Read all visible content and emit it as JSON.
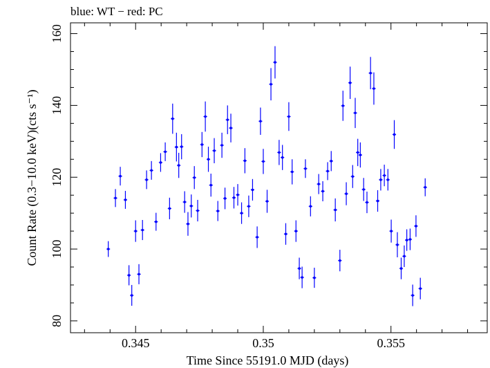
{
  "chart_data": {
    "type": "scatter",
    "title": "blue: WT − red: PC",
    "xlabel": "Time Since 55191.0 MJD (days)",
    "ylabel": "Count Rate (0.3−10.0 keV)(cts s⁻¹)",
    "xlim": [
      0.34245,
      0.35877
    ],
    "ylim": [
      76.7,
      163.0
    ],
    "xticks": [
      0.345,
      0.35,
      0.355
    ],
    "xtick_labels": [
      "0.345",
      "0.35",
      "0.355"
    ],
    "yticks": [
      80,
      100,
      120,
      140,
      160
    ],
    "ytick_labels": [
      "80",
      "100",
      "120",
      "140",
      "160"
    ],
    "grid": false,
    "series": [
      {
        "color": "#0000ff",
        "x_err": 7e-05,
        "points": [
          [
            0.34393,
            100.0,
            2.2
          ],
          [
            0.34421,
            114.2,
            2.5
          ],
          [
            0.3444,
            120.3,
            2.6
          ],
          [
            0.3446,
            113.7,
            2.5
          ],
          [
            0.34474,
            92.7,
            2.8
          ],
          [
            0.34485,
            87.1,
            2.9
          ],
          [
            0.345,
            105.0,
            3.0
          ],
          [
            0.34513,
            93.0,
            2.8
          ],
          [
            0.34527,
            105.3,
            2.8
          ],
          [
            0.34543,
            119.3,
            2.6
          ],
          [
            0.34562,
            121.9,
            2.6
          ],
          [
            0.3458,
            107.6,
            2.5
          ],
          [
            0.34598,
            124.1,
            2.6
          ],
          [
            0.34616,
            127.1,
            2.6
          ],
          [
            0.34633,
            111.3,
            3.0
          ],
          [
            0.34645,
            136.3,
            4.2
          ],
          [
            0.3466,
            128.4,
            4.0
          ],
          [
            0.34669,
            123.3,
            3.5
          ],
          [
            0.3468,
            128.5,
            3.5
          ],
          [
            0.34692,
            113.1,
            3.0
          ],
          [
            0.34705,
            107.0,
            3.3
          ],
          [
            0.34718,
            112.0,
            3.2
          ],
          [
            0.3473,
            119.9,
            3.2
          ],
          [
            0.34743,
            110.7,
            3.0
          ],
          [
            0.3476,
            129.1,
            3.5
          ],
          [
            0.34773,
            136.9,
            4.2
          ],
          [
            0.34785,
            125.0,
            3.5
          ],
          [
            0.34795,
            117.8,
            3.2
          ],
          [
            0.34808,
            127.4,
            3.5
          ],
          [
            0.34822,
            110.6,
            2.8
          ],
          [
            0.34838,
            128.9,
            3.5
          ],
          [
            0.3485,
            114.1,
            3.0
          ],
          [
            0.3486,
            136.0,
            4.0
          ],
          [
            0.34873,
            133.7,
            4.0
          ],
          [
            0.34885,
            114.3,
            3.0
          ],
          [
            0.349,
            115.1,
            3.0
          ],
          [
            0.34915,
            110.0,
            3.0
          ],
          [
            0.34928,
            124.6,
            3.5
          ],
          [
            0.34943,
            111.9,
            3.0
          ],
          [
            0.34958,
            116.5,
            3.0
          ],
          [
            0.34976,
            103.3,
            3.0
          ],
          [
            0.34989,
            135.6,
            3.8
          ],
          [
            0.35,
            124.4,
            3.5
          ],
          [
            0.35015,
            113.3,
            3.2
          ],
          [
            0.3503,
            145.9,
            4.5
          ],
          [
            0.35046,
            152.0,
            4.5
          ],
          [
            0.35062,
            126.9,
            3.5
          ],
          [
            0.35075,
            125.5,
            3.5
          ],
          [
            0.35088,
            104.2,
            3.0
          ],
          [
            0.351,
            136.9,
            4.0
          ],
          [
            0.35113,
            121.5,
            3.5
          ],
          [
            0.35128,
            105.0,
            3.0
          ],
          [
            0.35141,
            94.6,
            3.0
          ],
          [
            0.35152,
            92.1,
            3.0
          ],
          [
            0.35165,
            122.4,
            2.6
          ],
          [
            0.35185,
            111.9,
            2.8
          ],
          [
            0.352,
            92.0,
            2.8
          ],
          [
            0.35217,
            118.1,
            2.8
          ],
          [
            0.35233,
            116.1,
            2.8
          ],
          [
            0.35252,
            121.7,
            2.5
          ],
          [
            0.35266,
            124.5,
            2.8
          ],
          [
            0.35282,
            110.9,
            3.2
          ],
          [
            0.353,
            96.8,
            3.0
          ],
          [
            0.35312,
            139.9,
            4.2
          ],
          [
            0.35325,
            115.4,
            3.2
          ],
          [
            0.3534,
            146.3,
            4.5
          ],
          [
            0.3535,
            120.2,
            3.2
          ],
          [
            0.3536,
            137.9,
            4.2
          ],
          [
            0.3537,
            126.9,
            3.8
          ],
          [
            0.3538,
            126.2,
            3.5
          ],
          [
            0.35393,
            116.6,
            3.2
          ],
          [
            0.35406,
            113.0,
            3.0
          ],
          [
            0.3542,
            149.0,
            4.5
          ],
          [
            0.35433,
            144.7,
            4.5
          ],
          [
            0.35448,
            113.4,
            3.0
          ],
          [
            0.3546,
            119.3,
            3.0
          ],
          [
            0.35474,
            120.5,
            3.0
          ],
          [
            0.35488,
            119.3,
            3.0
          ],
          [
            0.35501,
            105.0,
            3.2
          ],
          [
            0.35513,
            131.9,
            4.0
          ],
          [
            0.35525,
            101.2,
            3.5
          ],
          [
            0.3554,
            94.6,
            3.0
          ],
          [
            0.35552,
            98.0,
            3.0
          ],
          [
            0.35562,
            102.5,
            3.0
          ],
          [
            0.35575,
            102.7,
            3.0
          ],
          [
            0.35585,
            87.1,
            3.0
          ],
          [
            0.35598,
            106.4,
            3.0
          ],
          [
            0.35615,
            89.0,
            3.0
          ],
          [
            0.35634,
            117.2,
            2.5
          ]
        ]
      }
    ]
  }
}
